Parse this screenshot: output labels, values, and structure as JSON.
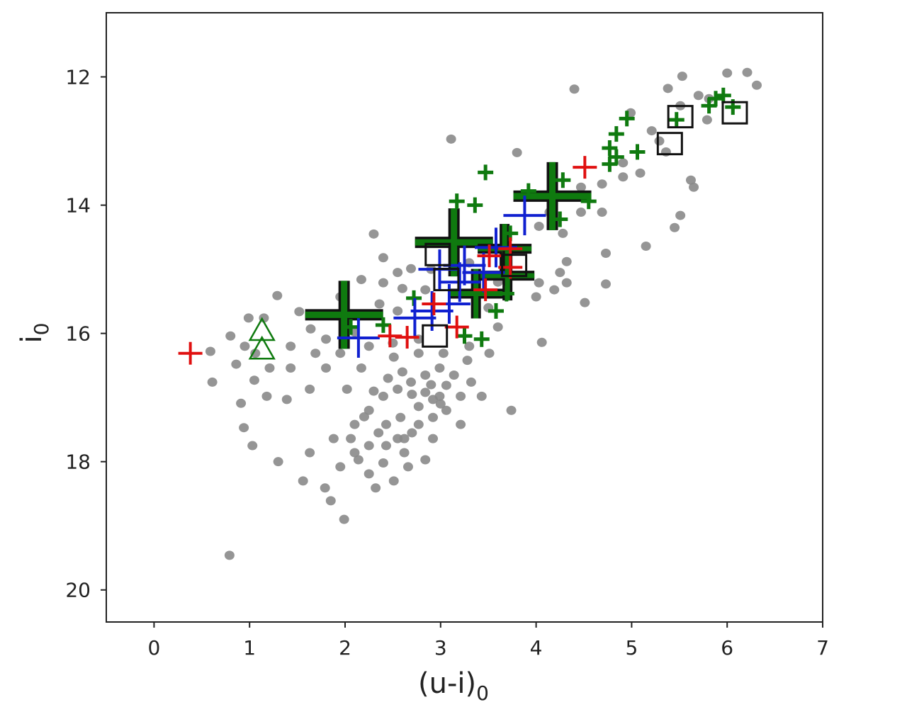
{
  "chart_data": {
    "type": "scatter",
    "title": "",
    "xlabel": "(u-i)",
    "xlabel_sub": "0",
    "ylabel": "i",
    "ylabel_sub": "0",
    "xlim": [
      -0.5,
      7
    ],
    "ylim": [
      20.5,
      11.0
    ],
    "y_inverted": true,
    "grid": false,
    "xticks": [
      "0",
      "1",
      "2",
      "3",
      "4",
      "5",
      "6",
      "7"
    ],
    "yticks": [
      "12",
      "14",
      "16",
      "18",
      "20"
    ],
    "colors": {
      "gray": "#8a8a8a",
      "green": "#0f7a0f",
      "red": "#e01010",
      "blue": "#1020d0",
      "black": "#111111"
    },
    "series": [
      {
        "marker": "gray-dot",
        "color": "#8a8a8a",
        "points": [
          [
            4.4,
            12.19
          ],
          [
            3.11,
            12.97
          ],
          [
            5.53,
            11.99
          ],
          [
            5.38,
            12.18
          ],
          [
            6.0,
            11.94
          ],
          [
            6.21,
            11.93
          ],
          [
            6.31,
            12.13
          ],
          [
            5.7,
            12.29
          ],
          [
            5.79,
            12.67
          ],
          [
            3.8,
            13.18
          ],
          [
            5.62,
            13.61
          ],
          [
            5.65,
            13.72
          ],
          [
            5.51,
            14.16
          ],
          [
            5.45,
            14.35
          ],
          [
            5.15,
            14.64
          ],
          [
            4.73,
            14.75
          ],
          [
            4.73,
            15.23
          ],
          [
            4.51,
            15.52
          ],
          [
            4.06,
            16.14
          ],
          [
            3.74,
            17.2
          ],
          [
            2.3,
            14.45
          ],
          [
            1.29,
            15.41
          ],
          [
            1.52,
            15.66
          ],
          [
            1.64,
            15.93
          ],
          [
            0.59,
            16.28
          ],
          [
            0.61,
            16.76
          ],
          [
            0.8,
            16.04
          ],
          [
            0.86,
            16.48
          ],
          [
            0.91,
            17.09
          ],
          [
            0.94,
            17.47
          ],
          [
            1.03,
            17.75
          ],
          [
            1.3,
            18.0
          ],
          [
            1.39,
            17.03
          ],
          [
            0.79,
            19.46
          ],
          [
            1.99,
            18.9
          ],
          [
            1.85,
            18.61
          ],
          [
            1.79,
            18.41
          ],
          [
            1.56,
            18.3
          ],
          [
            1.63,
            17.86
          ],
          [
            1.88,
            17.64
          ],
          [
            1.95,
            18.08
          ],
          [
            2.14,
            17.97
          ],
          [
            2.25,
            18.19
          ],
          [
            2.4,
            18.02
          ],
          [
            2.62,
            17.86
          ],
          [
            2.84,
            17.97
          ],
          [
            2.55,
            17.64
          ],
          [
            2.1,
            17.42
          ],
          [
            2.25,
            17.2
          ],
          [
            2.4,
            16.98
          ],
          [
            2.55,
            16.87
          ],
          [
            2.69,
            16.76
          ],
          [
            2.84,
            16.65
          ],
          [
            2.99,
            16.54
          ],
          [
            3.06,
            16.81
          ],
          [
            3.21,
            16.98
          ],
          [
            2.92,
            17.03
          ],
          [
            2.77,
            17.14
          ],
          [
            2.58,
            17.31
          ],
          [
            2.43,
            17.42
          ],
          [
            2.17,
            16.54
          ],
          [
            2.02,
            16.87
          ],
          [
            1.8,
            16.54
          ],
          [
            1.63,
            16.87
          ],
          [
            1.43,
            16.54
          ],
          [
            1.95,
            16.31
          ],
          [
            2.25,
            16.2
          ],
          [
            2.51,
            16.37
          ],
          [
            2.77,
            16.31
          ],
          [
            3.03,
            16.31
          ],
          [
            3.28,
            16.42
          ],
          [
            3.51,
            16.31
          ],
          [
            2.4,
            15.21
          ],
          [
            2.55,
            15.05
          ],
          [
            2.69,
            14.99
          ],
          [
            2.4,
            14.82
          ],
          [
            2.17,
            15.16
          ],
          [
            1.95,
            15.43
          ],
          [
            2.36,
            15.54
          ],
          [
            2.55,
            15.65
          ],
          [
            2.84,
            15.32
          ],
          [
            2.77,
            16.09
          ],
          [
            2.1,
            15.98
          ],
          [
            1.8,
            16.09
          ],
          [
            1.69,
            16.31
          ],
          [
            1.43,
            16.2
          ],
          [
            4.03,
            14.33
          ],
          [
            4.28,
            14.44
          ],
          [
            4.32,
            14.88
          ],
          [
            4.25,
            15.05
          ],
          [
            4.32,
            15.21
          ],
          [
            4.19,
            15.32
          ],
          [
            4.03,
            15.21
          ],
          [
            4.0,
            15.43
          ],
          [
            4.47,
            13.72
          ],
          [
            4.69,
            13.67
          ],
          [
            4.91,
            13.56
          ],
          [
            5.09,
            13.5
          ],
          [
            4.91,
            13.34
          ],
          [
            5.29,
            13.0
          ],
          [
            5.36,
            13.17
          ],
          [
            4.69,
            14.11
          ],
          [
            4.47,
            14.11
          ],
          [
            4.14,
            14.11
          ],
          [
            5.81,
            12.34
          ],
          [
            5.51,
            12.45
          ],
          [
            5.21,
            12.84
          ],
          [
            4.99,
            12.56
          ],
          [
            0.99,
            15.76
          ],
          [
            1.15,
            15.76
          ],
          [
            1.21,
            16.54
          ],
          [
            1.06,
            16.31
          ],
          [
            0.95,
            16.2
          ],
          [
            1.05,
            16.73
          ],
          [
            1.18,
            16.98
          ],
          [
            2.77,
            17.42
          ],
          [
            2.92,
            17.31
          ],
          [
            3.06,
            17.2
          ],
          [
            3.21,
            17.42
          ],
          [
            2.62,
            17.64
          ],
          [
            2.43,
            17.75
          ],
          [
            2.25,
            17.75
          ],
          [
            2.06,
            17.64
          ],
          [
            2.1,
            17.86
          ],
          [
            2.66,
            18.08
          ],
          [
            2.51,
            18.3
          ],
          [
            2.32,
            18.41
          ],
          [
            2.99,
            16.98
          ],
          [
            2.84,
            16.92
          ],
          [
            3.14,
            16.65
          ],
          [
            3.32,
            16.76
          ],
          [
            3.43,
            16.98
          ],
          [
            2.92,
            17.64
          ],
          [
            2.6,
            16.6
          ],
          [
            2.7,
            16.95
          ],
          [
            2.45,
            16.7
          ],
          [
            2.3,
            16.9
          ],
          [
            2.9,
            16.8
          ],
          [
            3.0,
            17.1
          ],
          [
            2.2,
            17.3
          ],
          [
            2.35,
            17.55
          ],
          [
            2.7,
            17.55
          ],
          [
            2.5,
            16.15
          ],
          [
            3.3,
            16.2
          ],
          [
            3.6,
            15.9
          ],
          [
            3.5,
            15.6
          ],
          [
            2.6,
            15.3
          ],
          [
            2.9,
            15.0
          ],
          [
            3.3,
            14.9
          ],
          [
            3.6,
            15.2
          ]
        ]
      },
      {
        "marker": "green-plus-small",
        "color": "#0f7a0f",
        "points": [
          [
            3.47,
            13.49
          ],
          [
            3.17,
            13.94
          ],
          [
            3.36,
            14.0
          ],
          [
            4.95,
            12.65
          ],
          [
            4.84,
            12.89
          ],
          [
            4.77,
            13.11
          ],
          [
            4.84,
            13.25
          ],
          [
            5.06,
            13.17
          ],
          [
            4.77,
            13.36
          ],
          [
            5.47,
            12.67
          ],
          [
            5.81,
            12.45
          ],
          [
            5.88,
            12.34
          ],
          [
            5.96,
            12.29
          ],
          [
            6.06,
            12.47
          ],
          [
            4.55,
            13.94
          ],
          [
            4.28,
            13.61
          ],
          [
            3.92,
            13.78
          ],
          [
            4.25,
            14.22
          ],
          [
            3.73,
            14.44
          ],
          [
            2.72,
            15.45
          ],
          [
            2.06,
            15.9
          ],
          [
            2.4,
            15.87
          ],
          [
            3.43,
            16.09
          ],
          [
            3.25,
            16.04
          ],
          [
            3.58,
            15.65
          ],
          [
            3.69,
            15.38
          ]
        ]
      },
      {
        "marker": "green-plus-large",
        "color": "#0f7a0f",
        "points": [
          [
            1.99,
            15.71,
            "large"
          ],
          [
            3.14,
            14.58,
            "large"
          ],
          [
            4.17,
            13.86,
            "large"
          ],
          [
            3.67,
            14.68,
            "medium"
          ],
          [
            3.37,
            15.38,
            "medium"
          ],
          [
            3.7,
            15.1,
            "medium"
          ]
        ]
      },
      {
        "marker": "blue-plus",
        "color": "#1020d0",
        "points": [
          [
            2.14,
            16.07
          ],
          [
            2.73,
            15.76
          ],
          [
            3.09,
            15.54
          ],
          [
            2.99,
            15.0
          ],
          [
            3.25,
            14.94
          ],
          [
            3.58,
            14.66
          ],
          [
            3.88,
            14.16
          ],
          [
            2.91,
            15.65
          ],
          [
            3.2,
            15.2
          ],
          [
            3.45,
            15.05
          ]
        ]
      },
      {
        "marker": "red-plus",
        "color": "#e01010",
        "points": [
          [
            0.38,
            16.31
          ],
          [
            4.51,
            13.41
          ],
          [
            2.47,
            16.04
          ],
          [
            2.65,
            16.06
          ],
          [
            2.93,
            15.54
          ],
          [
            3.17,
            15.9
          ],
          [
            3.51,
            14.79
          ],
          [
            3.73,
            14.68
          ],
          [
            3.73,
            14.97
          ],
          [
            3.47,
            15.32
          ]
        ]
      },
      {
        "marker": "black-square",
        "color": "#111111",
        "points": [
          [
            2.97,
            14.77
          ],
          [
            2.94,
            16.04
          ],
          [
            5.51,
            12.62
          ],
          [
            5.4,
            13.04
          ],
          [
            6.08,
            12.56
          ],
          [
            3.77,
            14.94
          ],
          [
            3.06,
            15.16
          ]
        ]
      },
      {
        "marker": "green-triangle",
        "color": "#0f7a0f",
        "points": [
          [
            1.13,
            15.96
          ],
          [
            1.13,
            16.25
          ]
        ]
      }
    ]
  }
}
